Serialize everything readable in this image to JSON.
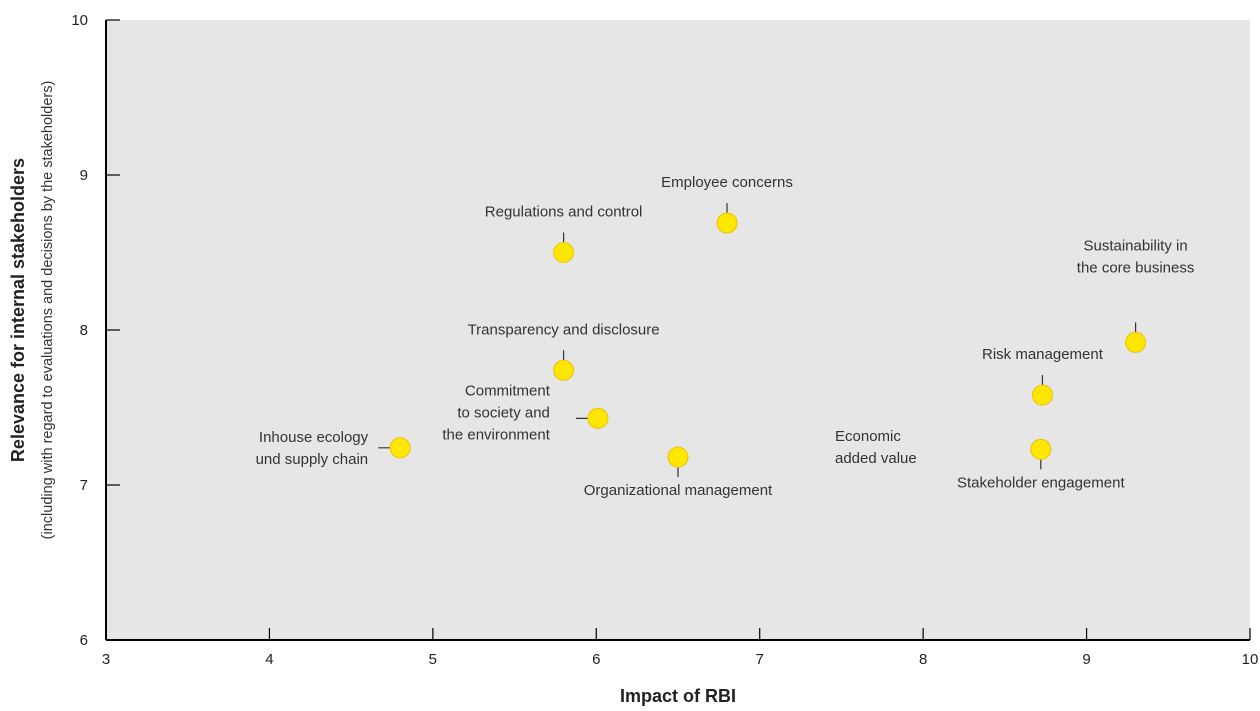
{
  "chart_data": {
    "type": "scatter",
    "title": "",
    "xlabel": "Impact of RBI",
    "ylabel": "Relevance for internal stakeholders",
    "ylabel_sub": "(including with regard to evaluations and decisions by the stakeholders)",
    "xlim": [
      3,
      10
    ],
    "ylim": [
      6,
      10
    ],
    "x_ticks": [
      3,
      4,
      5,
      6,
      7,
      8,
      9,
      10
    ],
    "y_ticks": [
      6,
      7,
      8,
      9,
      10
    ],
    "grid": false,
    "colors": {
      "marker": "#ffe600",
      "marker_stroke": "#e8c400",
      "plot_bg": "#e6e6e6",
      "axis": "#000000",
      "leader": "#333333"
    },
    "points": [
      {
        "label": [
          "Employee concerns"
        ],
        "x": 6.8,
        "y": 8.69
      },
      {
        "label": [
          "Regulations and control"
        ],
        "x": 5.8,
        "y": 8.5
      },
      {
        "label": [
          "Sustainability in",
          "the core business"
        ],
        "x": 9.3,
        "y": 7.92
      },
      {
        "label": [
          "Transparency and disclosure"
        ],
        "x": 5.8,
        "y": 7.74
      },
      {
        "label": [
          "Risk management"
        ],
        "x": 8.73,
        "y": 7.58
      },
      {
        "label": [
          "Commitment",
          "to society and",
          "the environment"
        ],
        "x": 6.01,
        "y": 7.43
      },
      {
        "label": [
          "Inhouse ecology",
          "und supply chain"
        ],
        "x": 4.8,
        "y": 7.24
      },
      {
        "label": [
          "Stakeholder engagement"
        ],
        "x": 8.72,
        "y": 7.23
      },
      {
        "label": [
          "Organizational management"
        ],
        "x": 6.5,
        "y": 7.18
      },
      {
        "label": [
          "Economic",
          "added value"
        ],
        "x": null,
        "y": null
      }
    ]
  }
}
